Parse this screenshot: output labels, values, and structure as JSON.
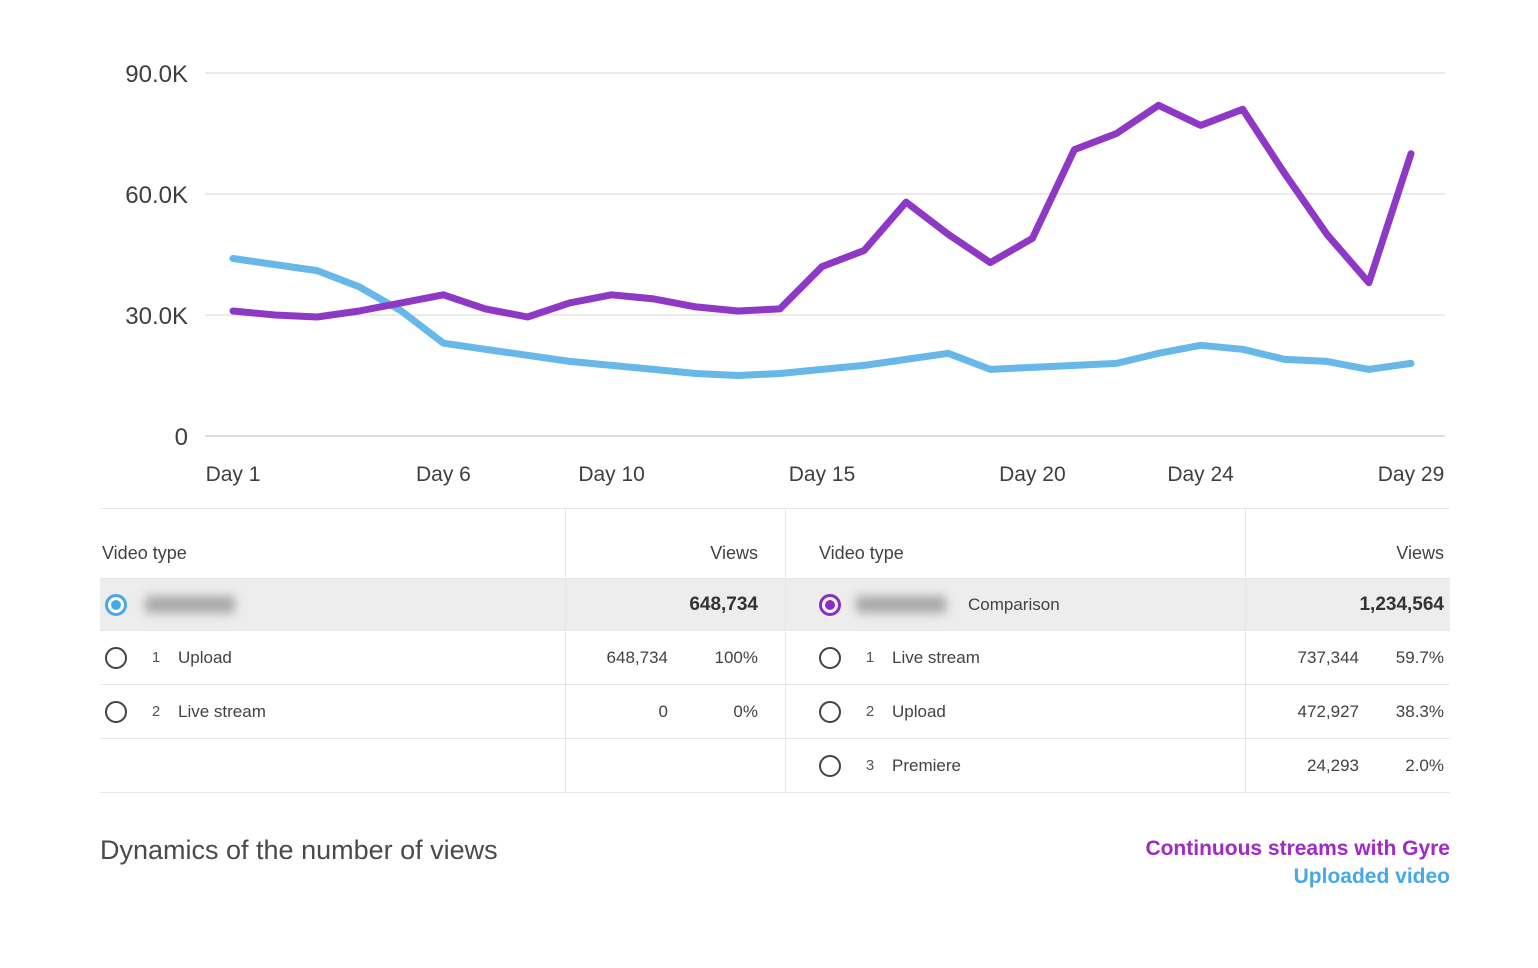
{
  "chart_data": {
    "type": "line",
    "title": "Dynamics of the number of views",
    "xlabel": "",
    "ylabel": "",
    "ylim": [
      0,
      90000
    ],
    "grid": true,
    "legend_position": "bottom-right",
    "y_ticks": [
      {
        "value": 0,
        "label": "0"
      },
      {
        "value": 30000,
        "label": "30.0K"
      },
      {
        "value": 60000,
        "label": "60.0K"
      },
      {
        "value": 90000,
        "label": "90.0K"
      }
    ],
    "x_ticks": [
      {
        "day": 1,
        "label": "Day 1"
      },
      {
        "day": 6,
        "label": "Day 6"
      },
      {
        "day": 10,
        "label": "Day 10"
      },
      {
        "day": 15,
        "label": "Day 15"
      },
      {
        "day": 20,
        "label": "Day 20"
      },
      {
        "day": 24,
        "label": "Day 24"
      },
      {
        "day": 29,
        "label": "Day 29"
      }
    ],
    "x_days": [
      1,
      2,
      3,
      4,
      5,
      6,
      7,
      8,
      9,
      10,
      11,
      12,
      13,
      14,
      15,
      16,
      17,
      18,
      19,
      20,
      21,
      22,
      23,
      24,
      25,
      26,
      27,
      28,
      29
    ],
    "series": [
      {
        "name": "Continuous streams with Gyre",
        "color": "#8d39c6",
        "values": [
          31000,
          30000,
          29500,
          31000,
          33000,
          35000,
          31500,
          29500,
          33000,
          35000,
          34000,
          32000,
          31000,
          31500,
          42000,
          46000,
          58000,
          50000,
          43000,
          49000,
          71000,
          75000,
          82000,
          77000,
          81000,
          65000,
          50000,
          38000,
          70000
        ]
      },
      {
        "name": "Uploaded video",
        "color": "#68b7e9",
        "values": [
          44000,
          42500,
          41000,
          37000,
          31000,
          23000,
          21500,
          20000,
          18500,
          17500,
          16500,
          15500,
          15000,
          15500,
          16500,
          17500,
          19000,
          20500,
          16500,
          17000,
          17500,
          18000,
          20500,
          22500,
          21500,
          19000,
          18500,
          16500,
          18000
        ]
      }
    ]
  },
  "colors": {
    "purple": "#8d39c6",
    "blue": "#68b7e9",
    "legend_purple": "#a128c9",
    "legend_blue": "#45a9e9",
    "selected_row_bg": "#ededed",
    "grid": "#ebebeb"
  },
  "tables": {
    "left": {
      "video_type_header": "Video type",
      "views_header": "Views",
      "selected": {
        "label_redacted": true,
        "views": "648,734"
      },
      "rows": [
        {
          "index": "1",
          "label": "Upload",
          "views": "648,734",
          "percent": "100%"
        },
        {
          "index": "2",
          "label": "Live stream",
          "views": "0",
          "percent": "0%"
        }
      ]
    },
    "right": {
      "video_type_header": "Video type",
      "views_header": "Views",
      "selected": {
        "label_redacted": true,
        "comparison_label": "Comparison",
        "views": "1,234,564"
      },
      "rows": [
        {
          "index": "1",
          "label": "Live stream",
          "views": "737,344",
          "percent": "59.7%"
        },
        {
          "index": "2",
          "label": "Upload",
          "views": "472,927",
          "percent": "38.3%"
        },
        {
          "index": "3",
          "label": "Premiere",
          "views": "24,293",
          "percent": "2.0%"
        }
      ]
    }
  },
  "footer": {
    "title": "Dynamics of the number of views",
    "legend": [
      {
        "label": "Continuous streams with Gyre",
        "color": "#a128c9"
      },
      {
        "label": "Uploaded video",
        "color": "#45a9e9"
      }
    ]
  }
}
